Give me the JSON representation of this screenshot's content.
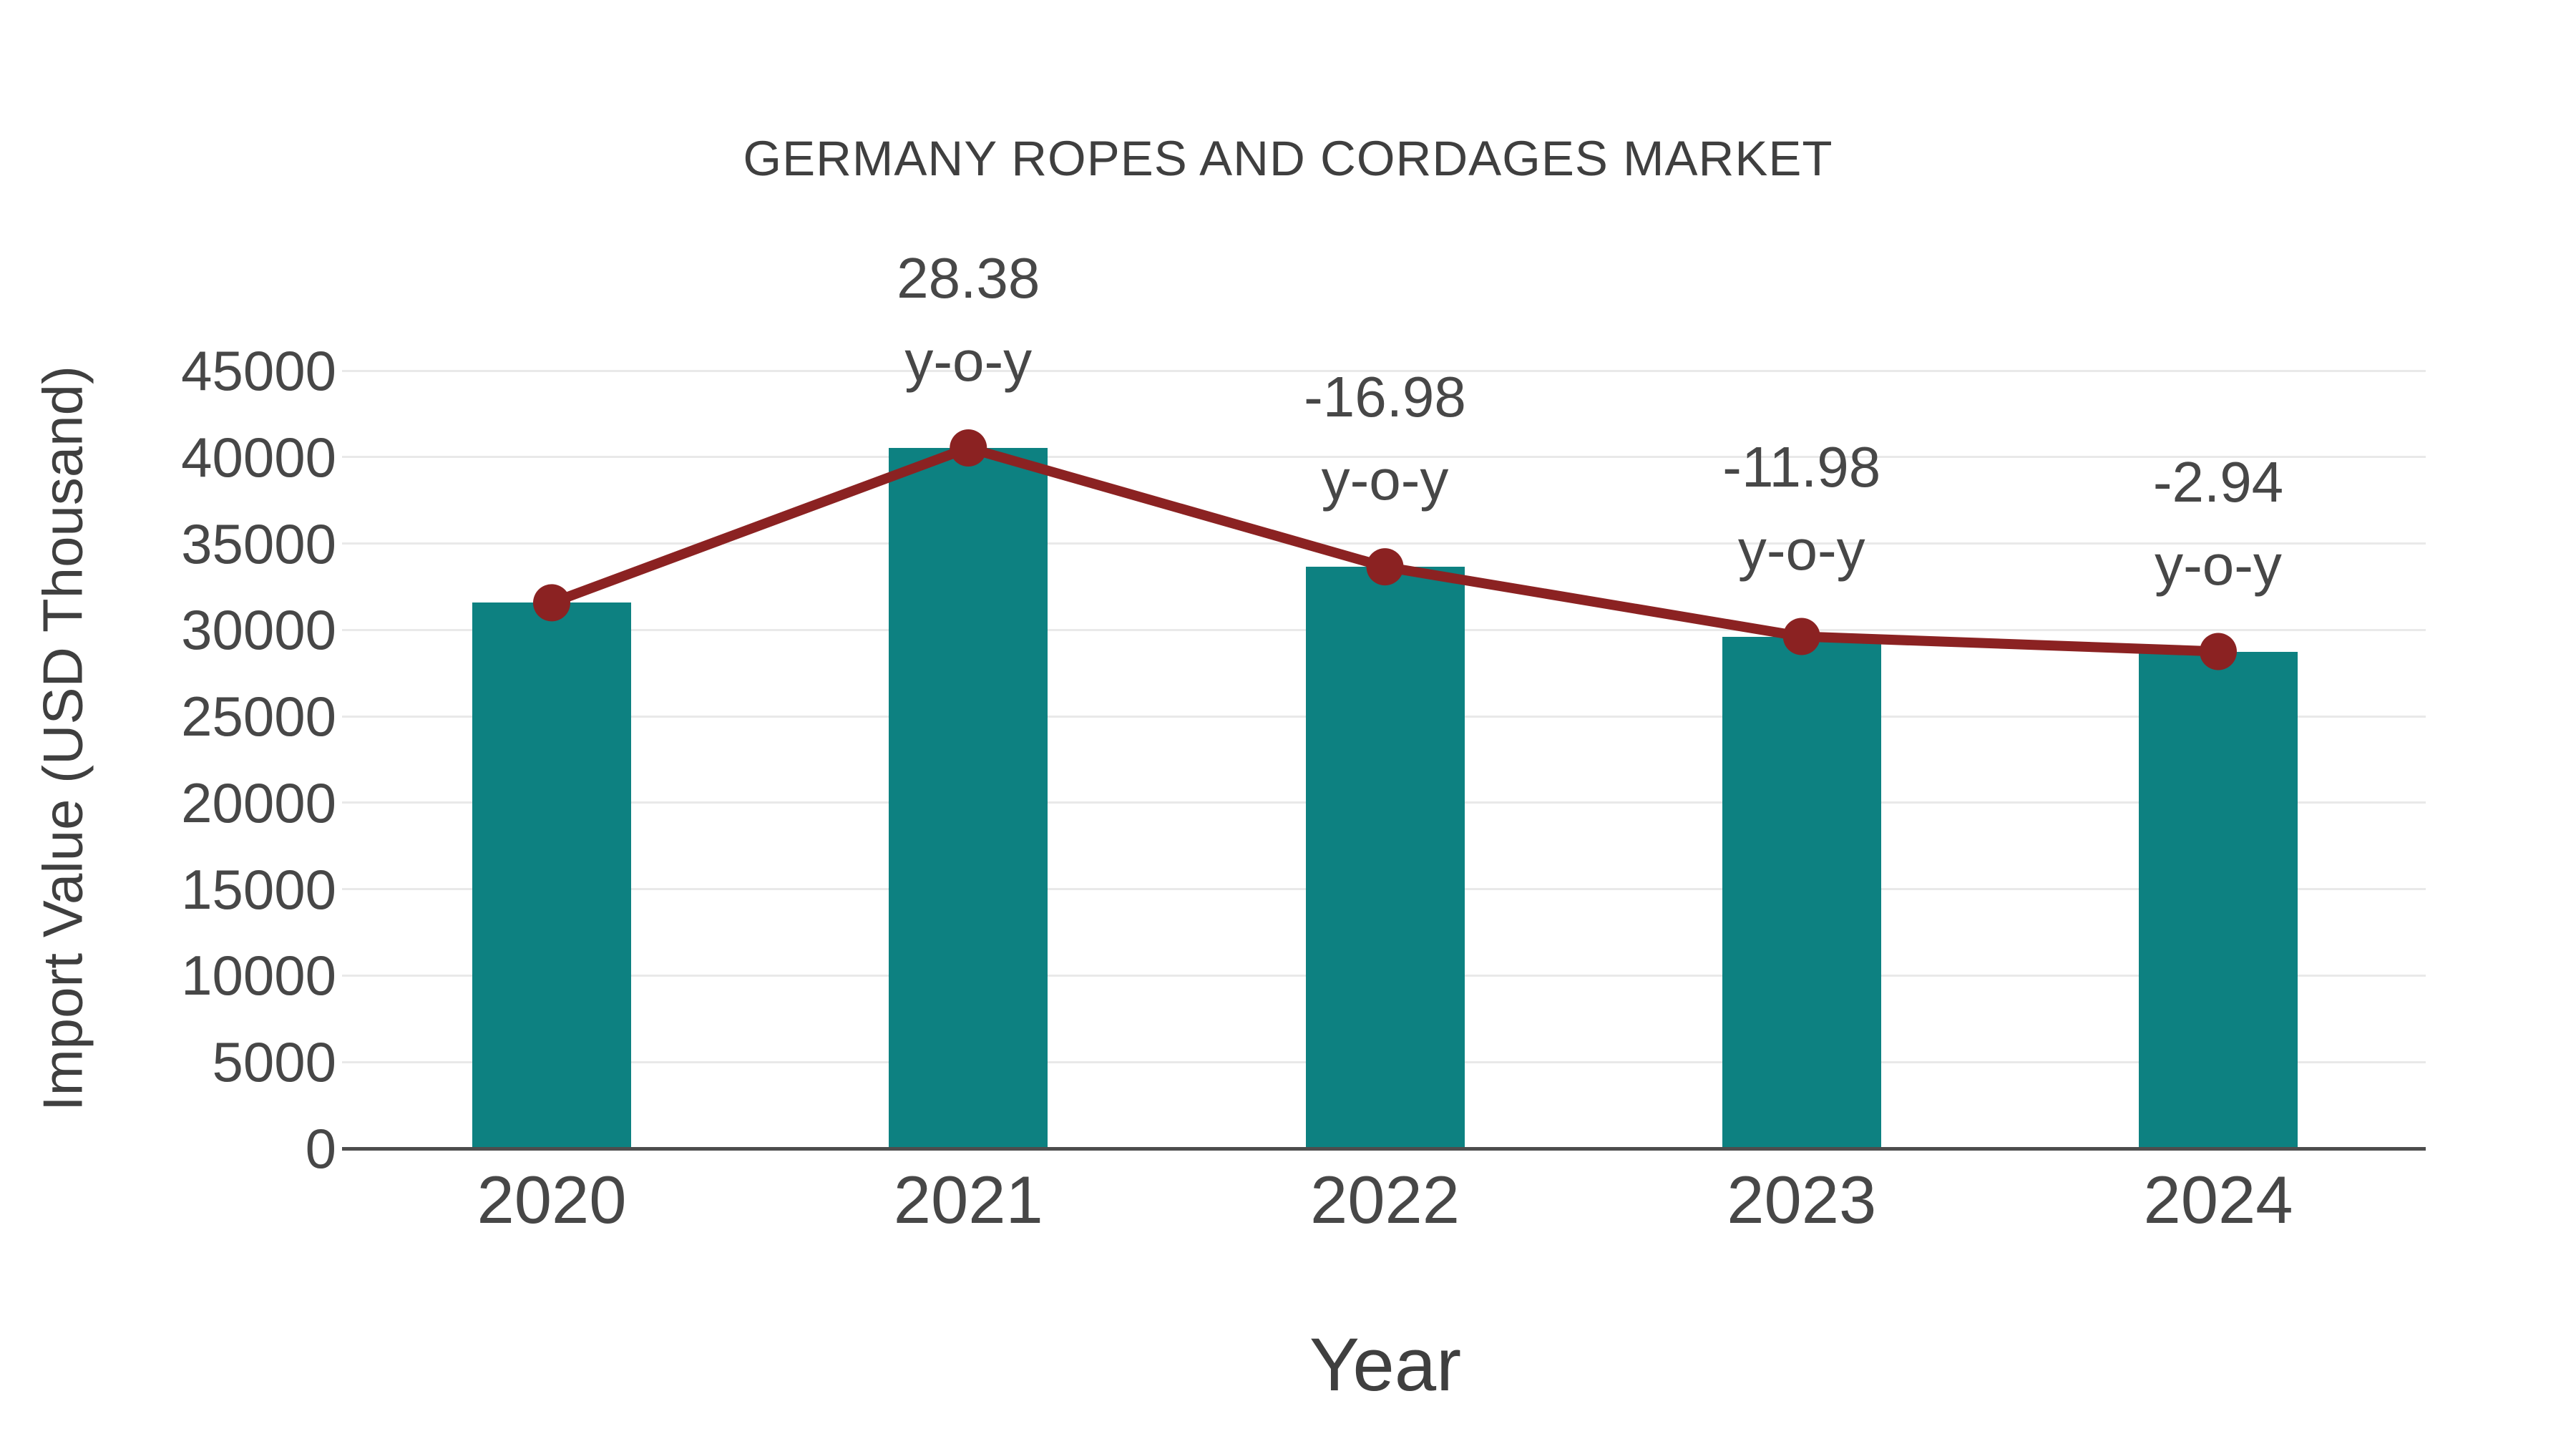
{
  "chart_data": {
    "type": "bar",
    "title": "GERMANY ROPES AND CORDAGES MARKET",
    "xlabel": "Year",
    "ylabel": "Import Value (USD Thousand)",
    "categories": [
      "2020",
      "2021",
      "2022",
      "2023",
      "2024"
    ],
    "series": [
      {
        "name": "Import Value (USD Thousand)",
        "type": "bar",
        "values": [
          31570,
          40530,
          33650,
          29620,
          28750
        ]
      },
      {
        "name": "y-o-y trend line",
        "type": "line",
        "values": [
          31570,
          40530,
          33650,
          29620,
          28750
        ]
      }
    ],
    "yoy_percent": [
      null,
      28.38,
      -16.98,
      -11.98,
      -2.94
    ],
    "annotations": [
      {
        "category": "2021",
        "value_label": "28.38",
        "sub_label": "y-o-y"
      },
      {
        "category": "2022",
        "value_label": "-16.98",
        "sub_label": "y-o-y"
      },
      {
        "category": "2023",
        "value_label": "-11.98",
        "sub_label": "y-o-y"
      },
      {
        "category": "2024",
        "value_label": "-2.94",
        "sub_label": "y-o-y"
      }
    ],
    "ylim": [
      0,
      45000
    ],
    "ytick_step": 5000,
    "ytick_labels": [
      "0",
      "5000",
      "10000",
      "15000",
      "20000",
      "25000",
      "30000",
      "35000",
      "40000",
      "45000"
    ],
    "grid": "horizontal",
    "legend": "none",
    "colors": {
      "bar": "#0D8181",
      "line": "#8B2222",
      "marker": "#8B2222",
      "grid": "#E9E9E9",
      "axis": "#4D4D4D",
      "tick_text": "#474747",
      "title_text": "#3F3F3F"
    }
  }
}
